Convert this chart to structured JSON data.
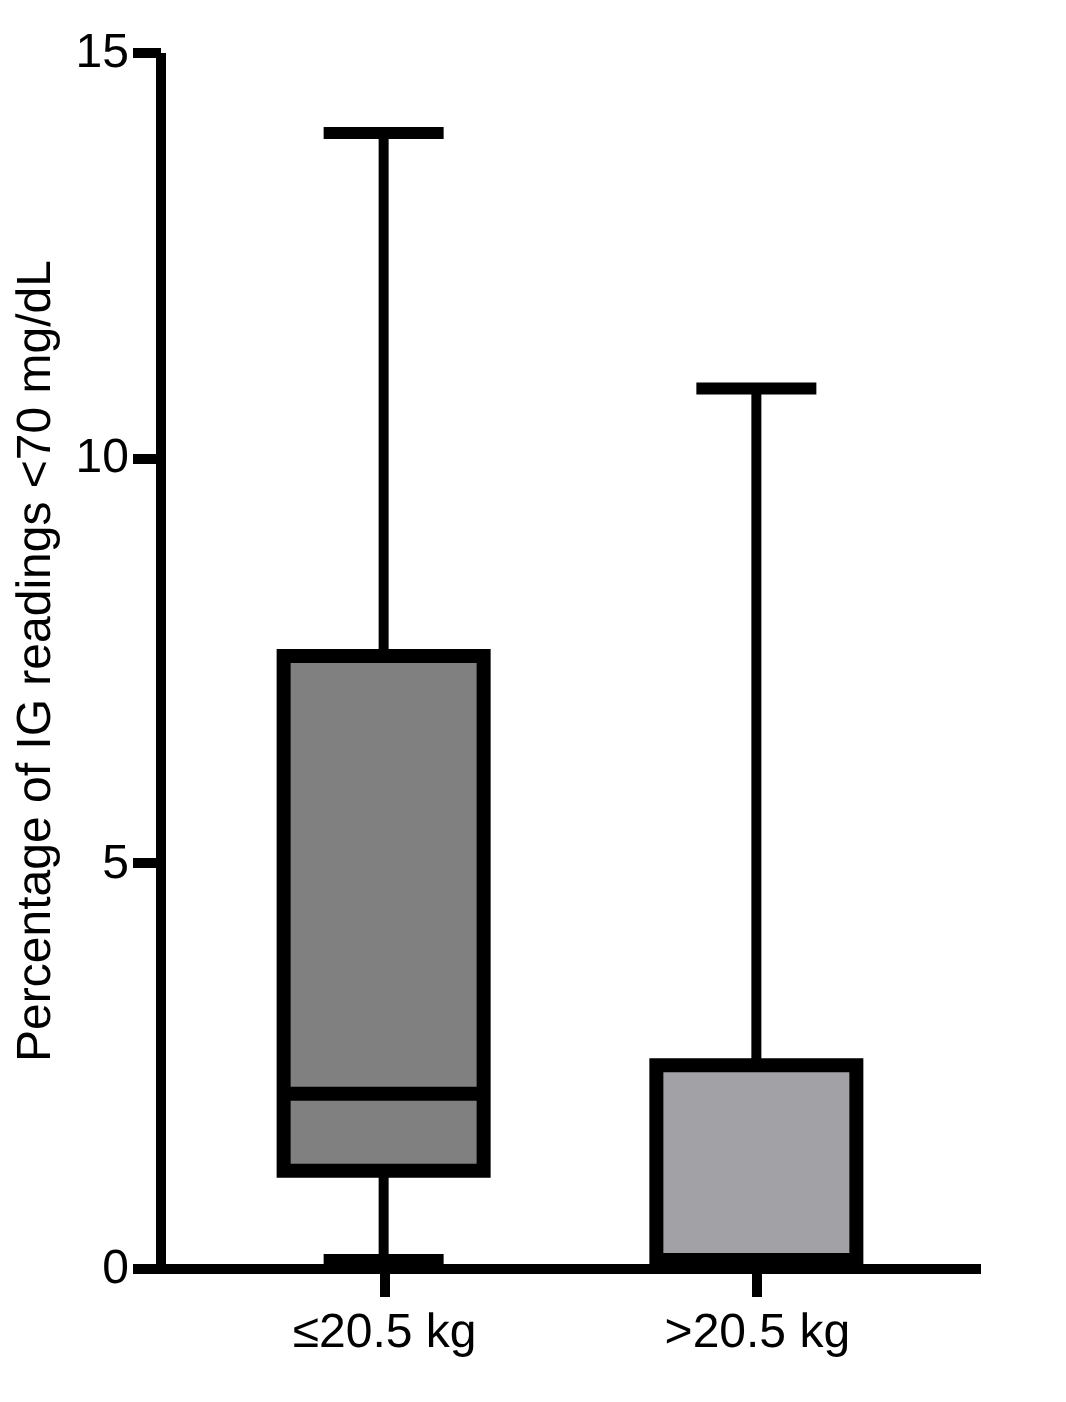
{
  "chart_data": {
    "type": "box",
    "ylabel": "Percentage of IG readings <70 mg/dL",
    "categories": [
      "≤20.5 kg",
      ">20.5 kg"
    ],
    "colors": [
      "#808080",
      "#a2a2a6"
    ],
    "boxes": [
      {
        "low": 0.1,
        "q1": 1.2,
        "median": 2.15,
        "q3": 7.55,
        "high": 14
      },
      {
        "low": 0.1,
        "q1": 0.1,
        "median": 0.1,
        "q3": 2.5,
        "high": 10.85
      }
    ],
    "ylim": [
      0,
      15
    ],
    "yticks": [
      0,
      5,
      10,
      15
    ],
    "grid": false
  }
}
